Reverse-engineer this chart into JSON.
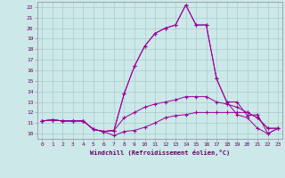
{
  "xlabel": "Windchill (Refroidissement éolien,°C)",
  "bg_color": "#cce8e8",
  "grid_color": "#aacccc",
  "line_color": "#990099",
  "xlim": [
    -0.5,
    23.4
  ],
  "ylim": [
    9.5,
    22.5
  ],
  "xticks": [
    0,
    1,
    2,
    3,
    4,
    5,
    6,
    7,
    8,
    9,
    10,
    11,
    12,
    13,
    14,
    15,
    16,
    17,
    18,
    19,
    20,
    21,
    22,
    23
  ],
  "yticks": [
    10,
    11,
    12,
    13,
    14,
    15,
    16,
    17,
    18,
    19,
    20,
    21,
    22
  ],
  "series": [
    [
      11.2,
      11.3,
      11.2,
      11.2,
      11.2,
      10.4,
      10.2,
      9.8,
      10.2,
      10.3,
      10.6,
      11.0,
      11.5,
      11.7,
      11.8,
      12.0,
      12.0,
      12.0,
      12.0,
      12.0,
      12.0,
      11.5,
      10.5,
      10.5
    ],
    [
      11.2,
      11.3,
      11.2,
      11.2,
      11.2,
      10.4,
      10.2,
      10.3,
      13.8,
      16.4,
      18.3,
      19.5,
      20.0,
      20.3,
      22.2,
      20.3,
      20.3,
      15.2,
      13.0,
      13.0,
      11.7,
      11.8,
      10.0,
      10.5
    ],
    [
      11.2,
      11.3,
      11.2,
      11.2,
      11.2,
      10.4,
      10.2,
      10.3,
      13.8,
      16.4,
      18.3,
      19.5,
      20.0,
      20.3,
      22.2,
      20.3,
      20.3,
      15.2,
      13.0,
      11.8,
      11.5,
      10.5,
      10.0,
      10.5
    ],
    [
      11.2,
      11.3,
      11.2,
      11.2,
      11.2,
      10.4,
      10.2,
      10.3,
      11.5,
      12.0,
      12.5,
      12.8,
      13.0,
      13.2,
      13.5,
      13.5,
      13.5,
      13.0,
      12.8,
      12.5,
      12.0,
      11.5,
      10.5,
      10.5
    ]
  ]
}
